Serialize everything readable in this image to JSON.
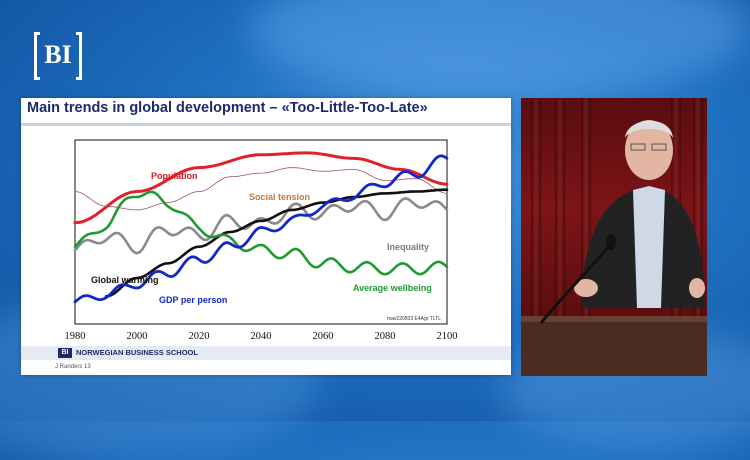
{
  "logo": {
    "text": "BI"
  },
  "slide": {
    "title": "Main trends in global development  –  «Too-Little-Too-Late»",
    "footer_logo": "BI",
    "footer_school": "NORWEGIAN BUSINESS SCHOOL",
    "author": "J Randers 13"
  },
  "chart_data": {
    "type": "line",
    "x_ticks": [
      "1980",
      "2000",
      "2020",
      "2040",
      "2060",
      "2080",
      "2100"
    ],
    "xlim": [
      1980,
      2100
    ],
    "note": "mav220503 E4Agr TLTL",
    "series": [
      {
        "name": "Population",
        "color": "#e0202a",
        "x": [
          1980,
          2000,
          2020,
          2040,
          2055,
          2070,
          2085,
          2100
        ],
        "y": [
          0.55,
          0.72,
          0.85,
          0.92,
          0.93,
          0.9,
          0.84,
          0.76
        ]
      },
      {
        "name": "Social tension",
        "color": "#a0506a",
        "x": [
          1980,
          1990,
          2000,
          2010,
          2020,
          2030,
          2040,
          2050,
          2060,
          2070,
          2080,
          2090,
          2100
        ],
        "y": [
          0.72,
          0.64,
          0.62,
          0.66,
          0.72,
          0.8,
          0.82,
          0.85,
          0.83,
          0.84,
          0.78,
          0.79,
          0.71
        ]
      },
      {
        "name": "Inequality",
        "color": "#8a8a8a",
        "x": [
          1980,
          1990,
          2000,
          2010,
          2020,
          2030,
          2040,
          2050,
          2060,
          2070,
          2080,
          2090,
          2100
        ],
        "y": [
          0.4,
          0.48,
          0.42,
          0.52,
          0.48,
          0.56,
          0.54,
          0.62,
          0.6,
          0.65,
          0.6,
          0.67,
          0.62
        ]
      },
      {
        "name": "Global warming",
        "color": "#111111",
        "x": [
          1990,
          2000,
          2010,
          2020,
          2030,
          2040,
          2050,
          2060,
          2070,
          2080,
          2090,
          2100
        ],
        "y": [
          0.15,
          0.25,
          0.33,
          0.42,
          0.5,
          0.56,
          0.62,
          0.66,
          0.69,
          0.71,
          0.72,
          0.73
        ]
      },
      {
        "name": "Average wellbeing",
        "color": "#1e9a30",
        "x": [
          1980,
          1990,
          2000,
          2010,
          2020,
          2030,
          2040,
          2050,
          2060,
          2070,
          2080,
          2090,
          2100
        ],
        "y": [
          0.42,
          0.54,
          0.72,
          0.66,
          0.52,
          0.45,
          0.4,
          0.38,
          0.33,
          0.31,
          0.3,
          0.3,
          0.31
        ]
      },
      {
        "name": "GDP per person",
        "color": "#1428c8",
        "x": [
          1980,
          1990,
          2000,
          2010,
          2020,
          2030,
          2040,
          2050,
          2060,
          2070,
          2080,
          2090,
          2100
        ],
        "y": [
          0.12,
          0.16,
          0.22,
          0.28,
          0.35,
          0.42,
          0.5,
          0.56,
          0.64,
          0.7,
          0.77,
          0.82,
          0.9
        ]
      }
    ],
    "labels": {
      "Population": "Population",
      "Social tension": "Social tension",
      "Inequality": "Inequality",
      "Global warming": "Global warming",
      "Average wellbeing": "Average wellbeing",
      "GDP per person": "GDP per person"
    },
    "grid": false
  }
}
